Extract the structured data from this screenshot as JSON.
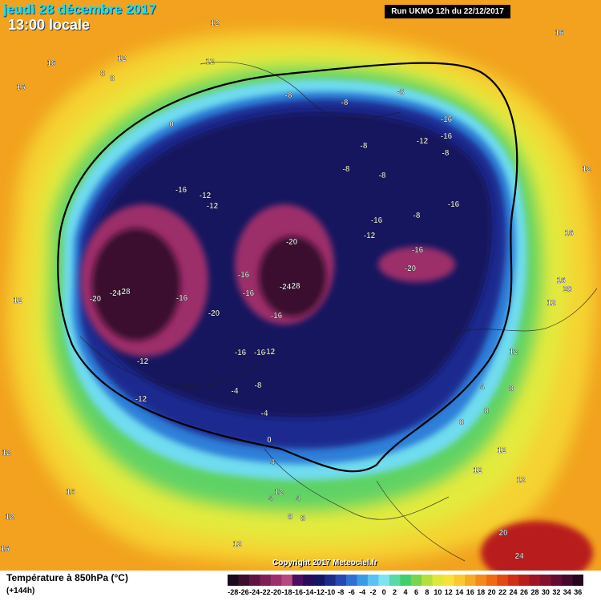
{
  "header": {
    "date_title": "jeudi 28 décembre 2017",
    "time_title": "13:00 locale",
    "run_label": "Run UKMO 12h du 22/12/2017"
  },
  "copyright": "Copyright 2017 Meteociel.fr",
  "footer": {
    "parameter_title": "Température à 850hPa (°C)",
    "lead_time": "(+144h)"
  },
  "legend": {
    "labels": [
      "-28",
      "-26",
      "-24",
      "-22",
      "-20",
      "-18",
      "-16",
      "-14",
      "-12",
      "-10",
      "-8",
      "-6",
      "-4",
      "-2",
      "0",
      "2",
      "4",
      "6",
      "8",
      "10",
      "12",
      "14",
      "16",
      "18",
      "20",
      "22",
      "24",
      "26",
      "28",
      "30",
      "32",
      "34",
      "36"
    ],
    "colors": [
      "#1a0a1e",
      "#3b0d2e",
      "#5e1443",
      "#7e1f56",
      "#9c2f6b",
      "#b8467f",
      "#4b0f62",
      "#2a0a5c",
      "#151566",
      "#1b2b8a",
      "#2548b3",
      "#2f6fd4",
      "#3b9ae6",
      "#5cc2ef",
      "#7fe3f2",
      "#57d9a8",
      "#3fcf6e",
      "#7ad44d",
      "#b3e13a",
      "#dfe838",
      "#f7e23a",
      "#f9c92e",
      "#f7ab23",
      "#f48a1a",
      "#ee6a14",
      "#e34a12",
      "#cf2f14",
      "#b91e1a",
      "#9e1325",
      "#82102e",
      "#640b33",
      "#430a2e",
      "#24071d"
    ]
  },
  "map_labels": [
    {
      "t": "12"
    },
    {
      "t": "16"
    },
    {
      "t": "12"
    },
    {
      "t": "16"
    },
    {
      "t": "8"
    },
    {
      "t": "8"
    },
    {
      "t": "12"
    },
    {
      "t": "16"
    },
    {
      "t": "0"
    },
    {
      "t": "-8"
    },
    {
      "t": "-8"
    },
    {
      "t": "-8"
    },
    {
      "t": "-16"
    },
    {
      "t": "-12"
    },
    {
      "t": "-16"
    },
    {
      "t": "-8"
    },
    {
      "t": "-8"
    },
    {
      "t": "-8"
    },
    {
      "t": "-16"
    },
    {
      "t": "-12"
    },
    {
      "t": "-12"
    },
    {
      "t": "-8"
    },
    {
      "t": "-16"
    },
    {
      "t": "-16"
    },
    {
      "t": "-8"
    },
    {
      "t": "-12"
    },
    {
      "t": "-20"
    },
    {
      "t": "-16"
    },
    {
      "t": "-20"
    },
    {
      "t": "-16"
    },
    {
      "t": "-16"
    },
    {
      "t": "-24"
    },
    {
      "t": "28"
    },
    {
      "t": "-16"
    },
    {
      "t": "-20"
    },
    {
      "t": "-24"
    },
    {
      "t": "28"
    },
    {
      "t": "-16"
    },
    {
      "t": "-20"
    },
    {
      "t": "-16"
    },
    {
      "t": "-16"
    },
    {
      "t": "-12"
    },
    {
      "t": "-12"
    },
    {
      "t": "-12"
    },
    {
      "t": "-4"
    },
    {
      "t": "-8"
    },
    {
      "t": "-4"
    },
    {
      "t": "0"
    },
    {
      "t": "4"
    },
    {
      "t": "12"
    },
    {
      "t": "12"
    },
    {
      "t": "12"
    },
    {
      "t": "16"
    },
    {
      "t": "16"
    },
    {
      "t": "20"
    },
    {
      "t": "12"
    },
    {
      "t": "8"
    },
    {
      "t": "4"
    },
    {
      "t": "8"
    },
    {
      "t": "8"
    },
    {
      "t": "12"
    },
    {
      "t": "12"
    },
    {
      "t": "12"
    },
    {
      "t": "12"
    },
    {
      "t": "20"
    },
    {
      "t": "24"
    },
    {
      "t": "4"
    },
    {
      "t": "4"
    },
    {
      "t": "8"
    },
    {
      "t": "12"
    },
    {
      "t": "12"
    },
    {
      "t": "16"
    },
    {
      "t": "16"
    },
    {
      "t": "8"
    },
    {
      "t": "12"
    }
  ]
}
